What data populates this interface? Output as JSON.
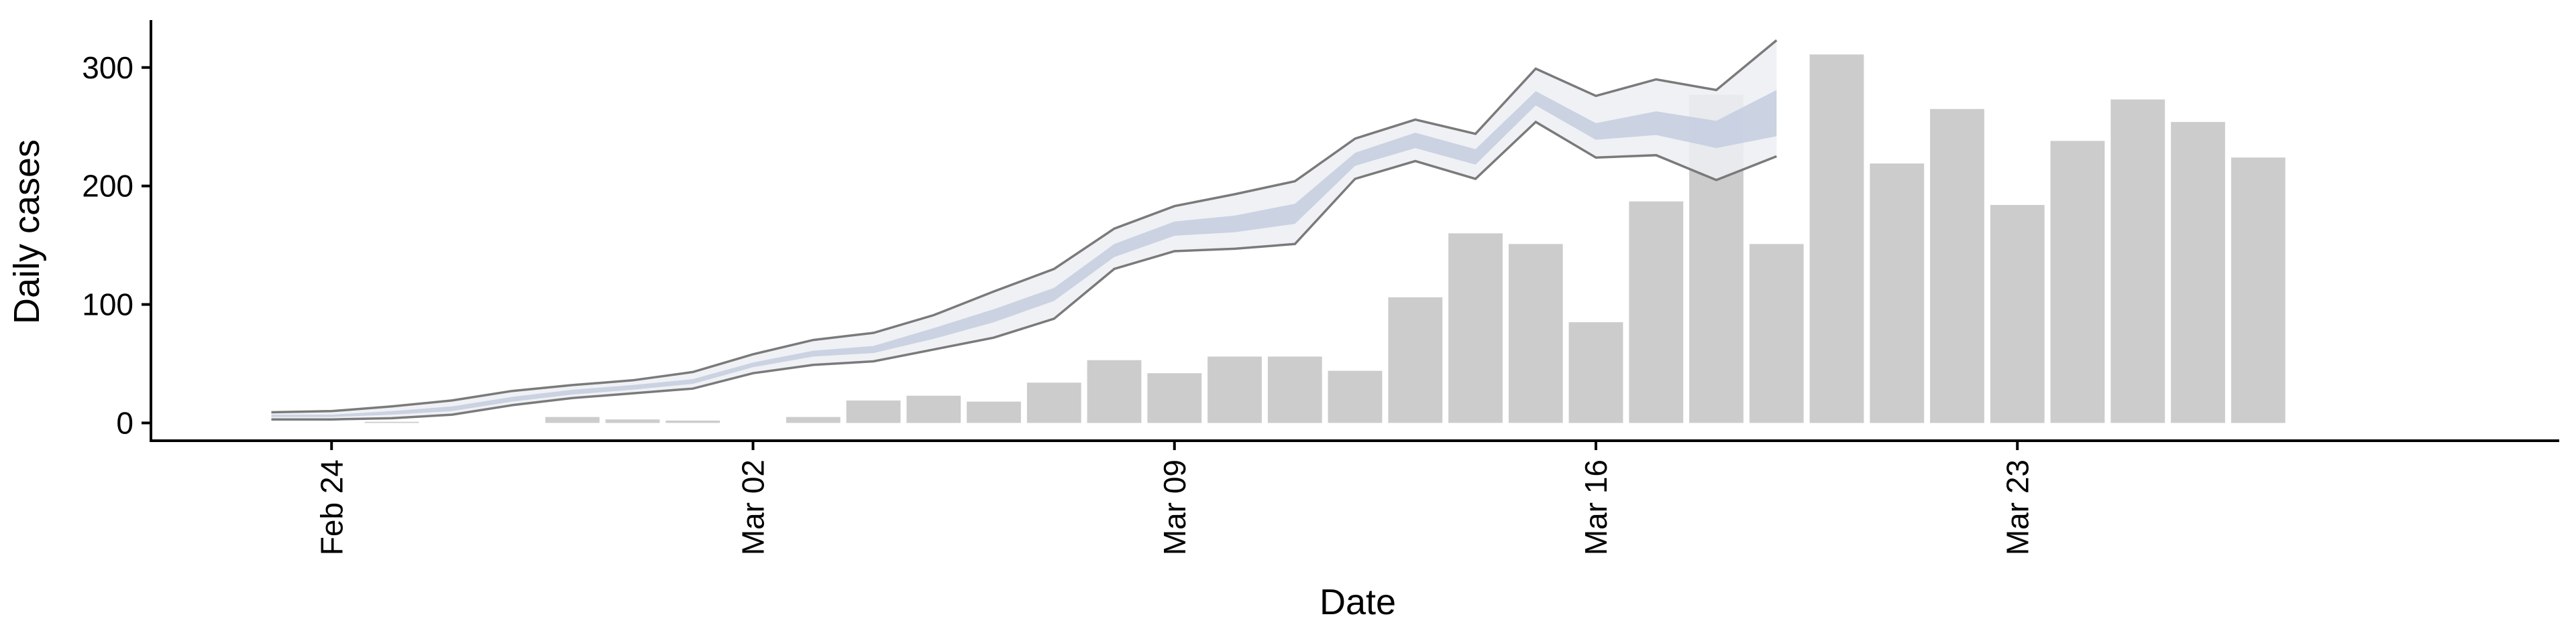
{
  "chart_data": {
    "type": "bar",
    "title": "",
    "xlabel": "Date",
    "ylabel": "Daily cases",
    "ylim": [
      -15,
      340
    ],
    "yticks": [
      0,
      100,
      200,
      300
    ],
    "xticks": [
      {
        "date": "2020-02-24",
        "label": "Feb 24"
      },
      {
        "date": "2020-03-02",
        "label": "Mar 02"
      },
      {
        "date": "2020-03-09",
        "label": "Mar 09"
      },
      {
        "date": "2020-03-16",
        "label": "Mar 16"
      },
      {
        "date": "2020-03-23",
        "label": "Mar 23"
      }
    ],
    "xlim": [
      "2020-02-21",
      "2020-04-01"
    ],
    "grid": false,
    "legend": "none",
    "colors": {
      "bars": "#cccccc",
      "outer_band": "#eceef3",
      "inner_band": "#c6cee0",
      "band_edges": "#7a7a7a"
    },
    "bars": {
      "x": [
        "2020-02-25",
        "2020-02-28",
        "2020-02-29",
        "2020-03-01",
        "2020-03-03",
        "2020-03-04",
        "2020-03-05",
        "2020-03-06",
        "2020-03-07",
        "2020-03-08",
        "2020-03-09",
        "2020-03-10",
        "2020-03-11",
        "2020-03-12",
        "2020-03-13",
        "2020-03-14",
        "2020-03-15",
        "2020-03-16",
        "2020-03-17",
        "2020-03-18",
        "2020-03-19",
        "2020-03-20",
        "2020-03-21",
        "2020-03-22",
        "2020-03-23",
        "2020-03-24",
        "2020-03-25",
        "2020-03-26",
        "2020-03-27",
        "2020-03-28"
      ],
      "values": [
        1,
        5,
        3,
        2,
        5,
        19,
        23,
        18,
        34,
        53,
        42,
        56,
        56,
        44,
        106,
        160,
        151,
        85,
        187,
        277,
        151,
        311,
        219,
        265,
        184,
        238,
        273,
        254,
        224,
        0
      ]
    },
    "nowcast": {
      "x": [
        "2020-02-23",
        "2020-02-24",
        "2020-02-25",
        "2020-02-26",
        "2020-02-27",
        "2020-02-28",
        "2020-02-29",
        "2020-03-01",
        "2020-03-02",
        "2020-03-03",
        "2020-03-04",
        "2020-03-05",
        "2020-03-06",
        "2020-03-07",
        "2020-03-08",
        "2020-03-09",
        "2020-03-10",
        "2020-03-11",
        "2020-03-12",
        "2020-03-13",
        "2020-03-14",
        "2020-03-15",
        "2020-03-16",
        "2020-03-17",
        "2020-03-18",
        "2020-03-19"
      ],
      "outer_lower": [
        3,
        3,
        4,
        7,
        15,
        21,
        25,
        29,
        42,
        49,
        52,
        62,
        72,
        88,
        130,
        145,
        147,
        151,
        206,
        221,
        206,
        254,
        224,
        226,
        205,
        225
      ],
      "inner_lower": [
        5,
        5,
        7,
        10,
        18,
        24,
        28,
        33,
        47,
        56,
        59,
        71,
        85,
        103,
        140,
        158,
        161,
        168,
        217,
        232,
        218,
        268,
        239,
        243,
        232,
        242
      ],
      "inner_upper": [
        7,
        7,
        10,
        14,
        22,
        28,
        32,
        37,
        51,
        61,
        65,
        80,
        96,
        114,
        151,
        170,
        175,
        185,
        228,
        245,
        231,
        280,
        253,
        263,
        255,
        281
      ],
      "outer_upper": [
        9,
        10,
        14,
        19,
        27,
        32,
        36,
        43,
        58,
        70,
        76,
        91,
        111,
        130,
        164,
        183,
        193,
        204,
        240,
        256,
        244,
        299,
        276,
        290,
        281,
        323
      ]
    }
  }
}
